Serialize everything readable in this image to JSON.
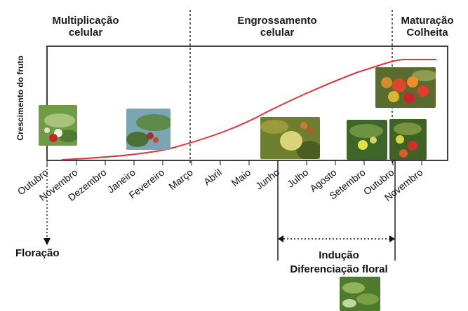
{
  "phases": {
    "multiplication": "Multiplicação\ncelular",
    "enlargement": "Engrossamento\ncelular",
    "maturation": "Maturação\nColheita"
  },
  "y_axis_label": "Crescimento do fruto",
  "months": [
    "Outubro",
    "Novembro",
    "Dezembro",
    "Janeiro",
    "Fevereiro",
    "Março",
    "Abril",
    "Maio",
    "Junho",
    "Julho",
    "Agosto",
    "Setembro",
    "Outubro",
    "Novembro"
  ],
  "flowering_label": "Floração",
  "induction_label": "Indução\nDiferenciação floral",
  "colors": {
    "curve": "#e8313a",
    "frame": "#111111"
  },
  "photo_icons": [
    "fruit-photo-icon",
    "fruit-photo-icon",
    "fruit-photo-icon",
    "fruit-photo-icon",
    "fruit-photo-icon",
    "fruit-photo-icon",
    "leaf-photo-icon"
  ]
}
